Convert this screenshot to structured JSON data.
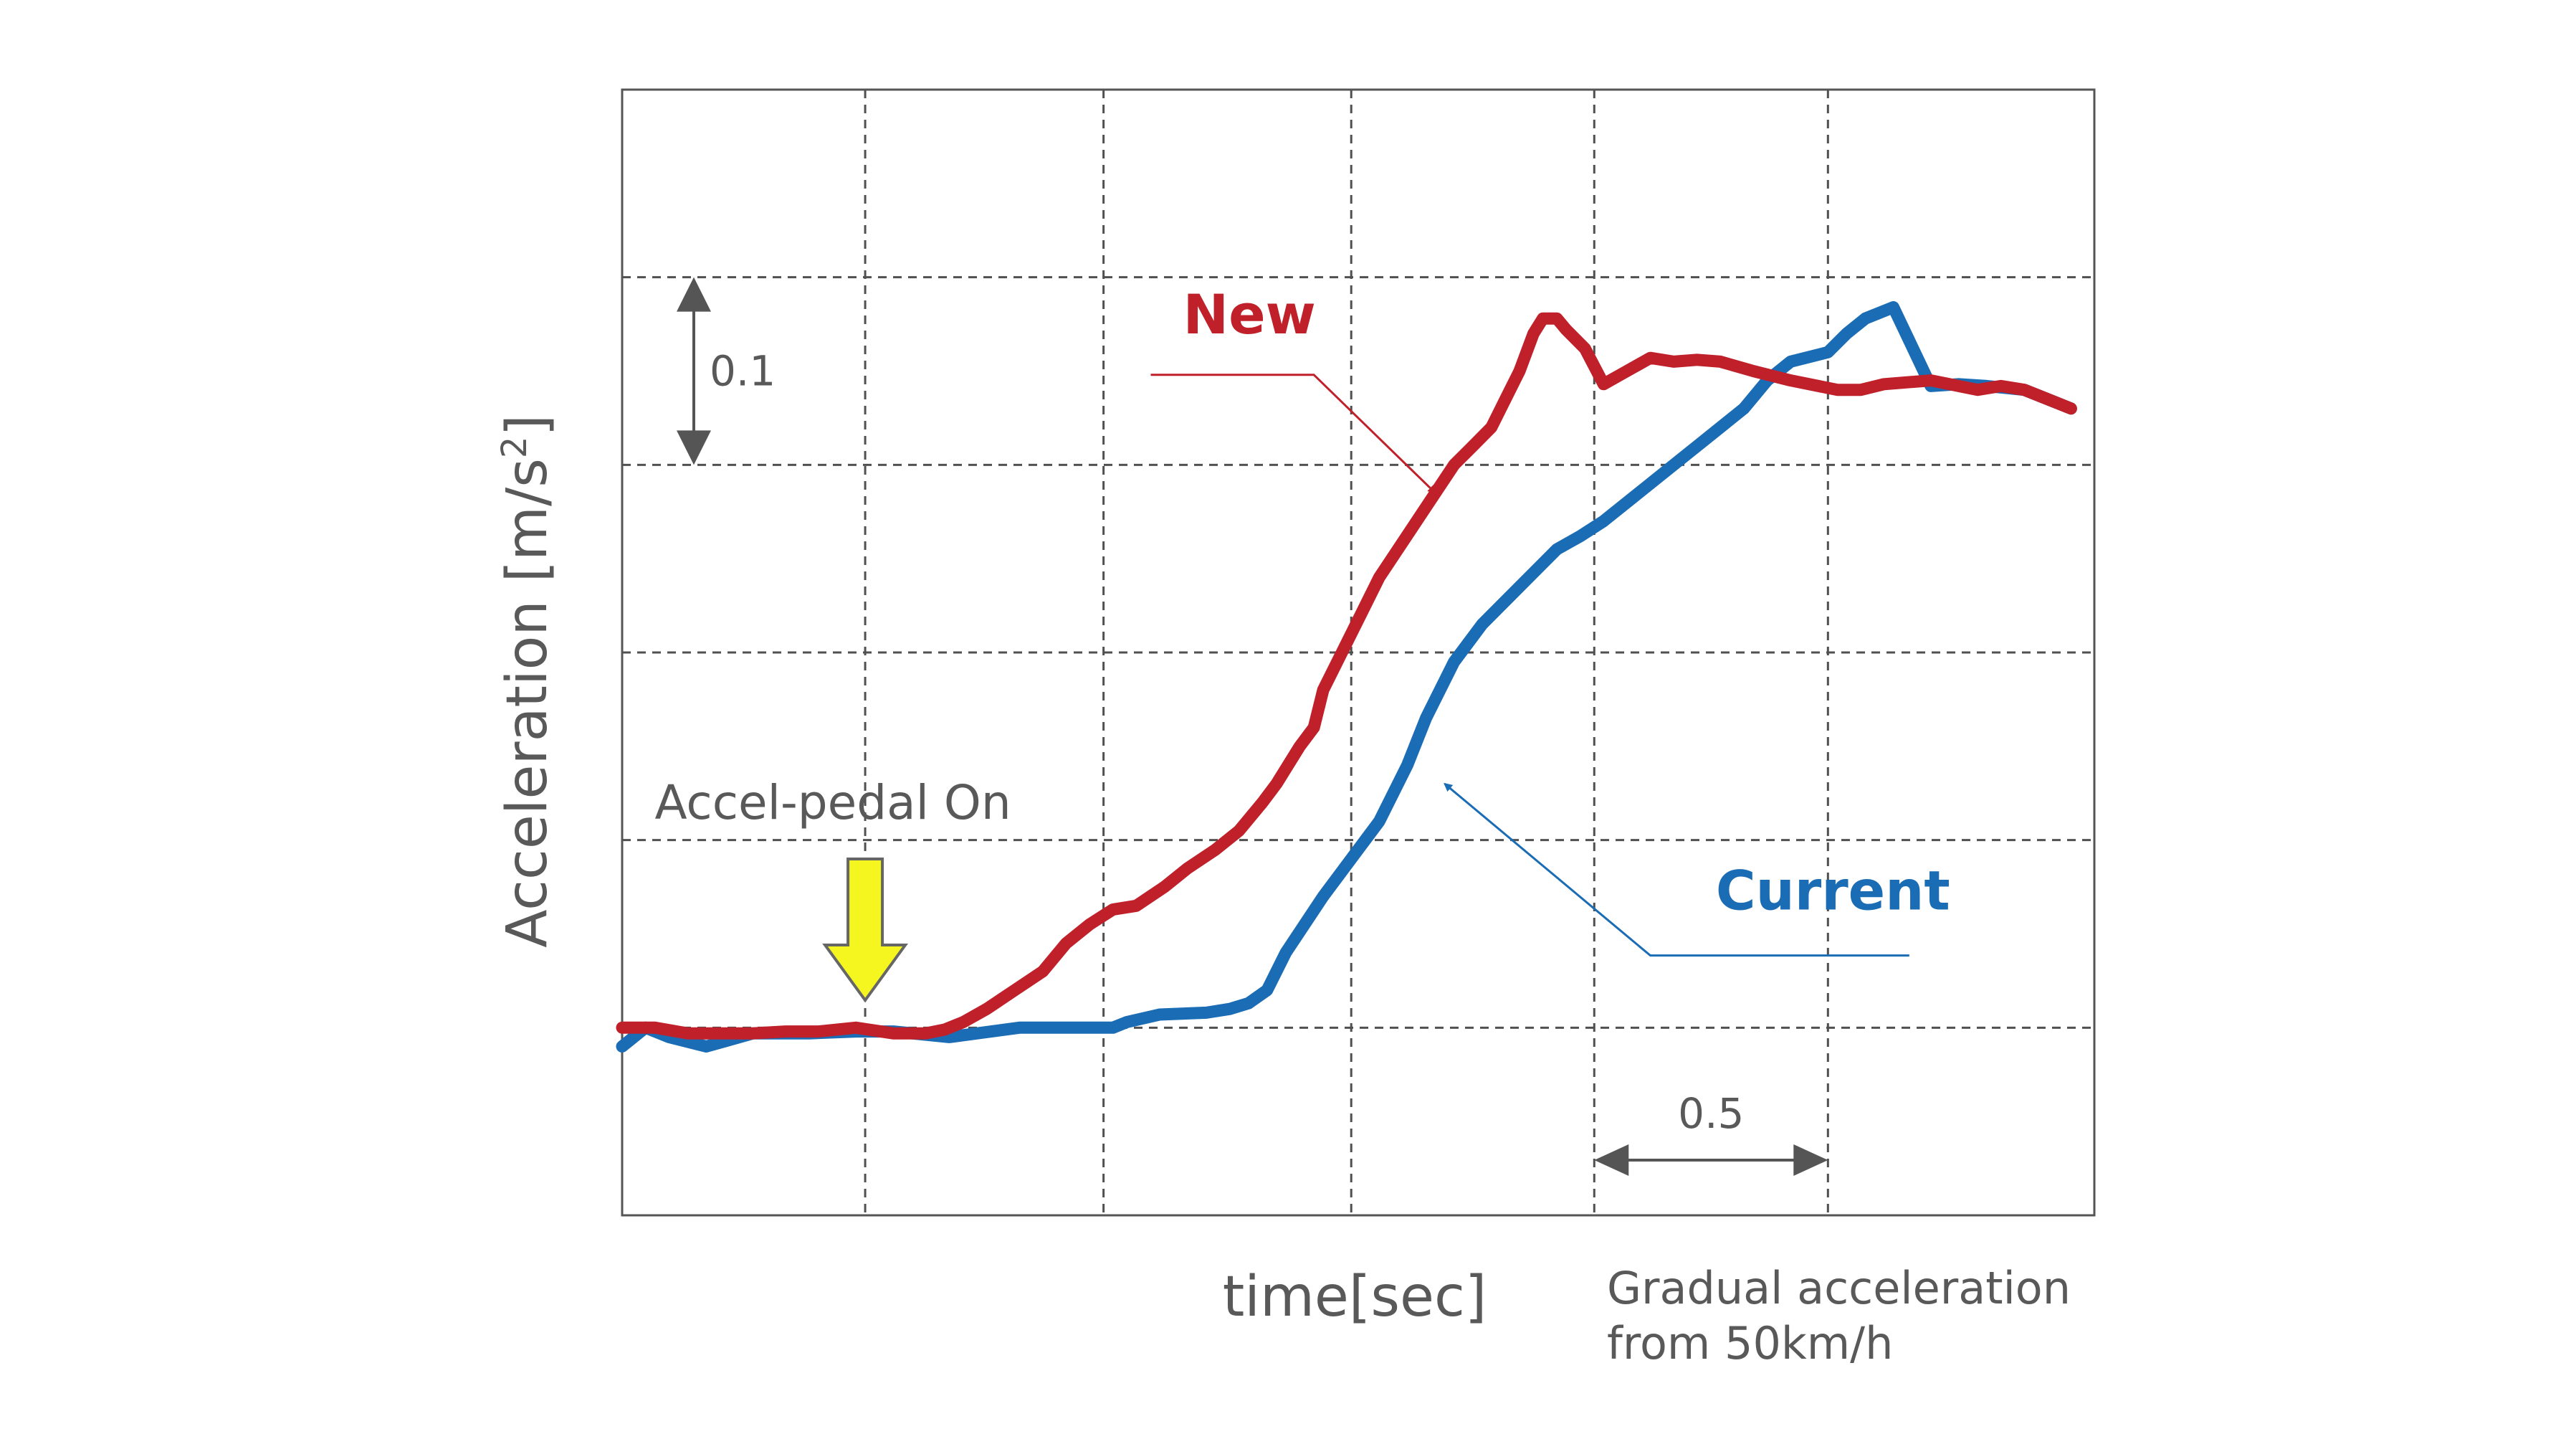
{
  "chart_data": {
    "type": "line",
    "title": "",
    "xlabel": "time[sec]",
    "ylabel_main": "Acceleration [m/s",
    "ylabel_sup": "2",
    "ylabel_tail": "]",
    "xlim": [
      0,
      3.15
    ],
    "ylim": [
      -0.1,
      0.5
    ],
    "grid": true,
    "x_grid_steps": [
      0.52,
      1.03,
      1.56,
      2.08,
      2.58
    ],
    "y_grid_steps": [
      0.0,
      0.1,
      0.2,
      0.3,
      0.4
    ],
    "scale_y": {
      "label": "0.1",
      "from": 0.3,
      "to": 0.4
    },
    "scale_x": {
      "label": "0.5",
      "from": 2.08,
      "to": 2.58
    },
    "pedal_label": "Accel-pedal On",
    "pedal_x": 0.52,
    "note_line1": "Gradual acceleration",
    "note_line2": "from 50km/h",
    "colors": {
      "new": "#c0202a",
      "current": "#1a6cb5",
      "arrow_fill": "#f5f520",
      "grid": "#505050",
      "text": "#595959"
    },
    "series": [
      {
        "name": "New",
        "color": "#c0202a",
        "x": [
          0,
          0.07,
          0.14,
          0.2,
          0.28,
          0.35,
          0.42,
          0.5,
          0.58,
          0.65,
          0.69,
          0.73,
          0.78,
          0.84,
          0.9,
          0.95,
          1.0,
          1.05,
          1.1,
          1.16,
          1.21,
          1.27,
          1.32,
          1.37,
          1.4,
          1.45,
          1.48,
          1.5,
          1.54,
          1.58,
          1.62,
          1.66,
          1.7,
          1.74,
          1.78,
          1.82,
          1.86,
          1.89,
          1.92,
          1.95,
          1.97,
          2.0,
          2.02,
          2.06,
          2.1,
          2.15,
          2.2,
          2.25,
          2.3,
          2.35,
          2.42,
          2.5,
          2.6,
          2.65,
          2.7,
          2.8,
          2.9,
          2.95,
          3.0,
          3.05,
          3.1
        ],
        "y": [
          0.0,
          0.0,
          -0.003,
          -0.003,
          -0.003,
          -0.002,
          -0.002,
          0.0,
          -0.003,
          -0.003,
          -0.001,
          0.003,
          0.01,
          0.02,
          0.03,
          0.045,
          0.055,
          0.063,
          0.065,
          0.075,
          0.085,
          0.095,
          0.105,
          0.12,
          0.13,
          0.15,
          0.16,
          0.18,
          0.2,
          0.22,
          0.24,
          0.255,
          0.27,
          0.285,
          0.3,
          0.31,
          0.32,
          0.335,
          0.35,
          0.37,
          0.378,
          0.378,
          0.372,
          0.362,
          0.343,
          0.35,
          0.357,
          0.355,
          0.356,
          0.355,
          0.35,
          0.345,
          0.34,
          0.34,
          0.343,
          0.345,
          0.34,
          0.342,
          0.34,
          0.335,
          0.33
        ]
      },
      {
        "name": "Current",
        "color": "#1a6cb5",
        "x": [
          0,
          0.05,
          0.1,
          0.18,
          0.28,
          0.4,
          0.5,
          0.58,
          0.7,
          0.85,
          0.95,
          1.05,
          1.08,
          1.15,
          1.25,
          1.3,
          1.34,
          1.38,
          1.42,
          1.46,
          1.5,
          1.56,
          1.62,
          1.68,
          1.72,
          1.78,
          1.84,
          1.92,
          2.0,
          2.05,
          2.1,
          2.2,
          2.3,
          2.4,
          2.45,
          2.5,
          2.58,
          2.62,
          2.66,
          2.72,
          2.8,
          2.86,
          2.92,
          3.0,
          3.05,
          3.1
        ],
        "y": [
          -0.01,
          0.0,
          -0.005,
          -0.01,
          -0.003,
          -0.003,
          -0.002,
          -0.002,
          -0.005,
          0.0,
          0.0,
          0.0,
          0.003,
          0.007,
          0.008,
          0.01,
          0.013,
          0.02,
          0.04,
          0.055,
          0.07,
          0.09,
          0.11,
          0.14,
          0.165,
          0.195,
          0.215,
          0.235,
          0.255,
          0.262,
          0.27,
          0.29,
          0.31,
          0.33,
          0.345,
          0.355,
          0.36,
          0.37,
          0.378,
          0.384,
          0.342,
          0.343,
          0.342,
          0.34,
          0.335,
          0.33
        ]
      }
    ],
    "annotations": [
      {
        "text": "New",
        "series": "New",
        "label_x": 1.2,
        "label_y": 0.37,
        "line_end_x": 1.48,
        "line_y": 0.348,
        "tip_x": 1.74,
        "tip_y": 0.285
      },
      {
        "text": "Current",
        "series": "Current",
        "label_x": 2.34,
        "label_y": 0.063,
        "line_end_x": 2.2,
        "line_y": 0.04,
        "tip_x": 1.76,
        "tip_y": 0.13
      }
    ]
  }
}
